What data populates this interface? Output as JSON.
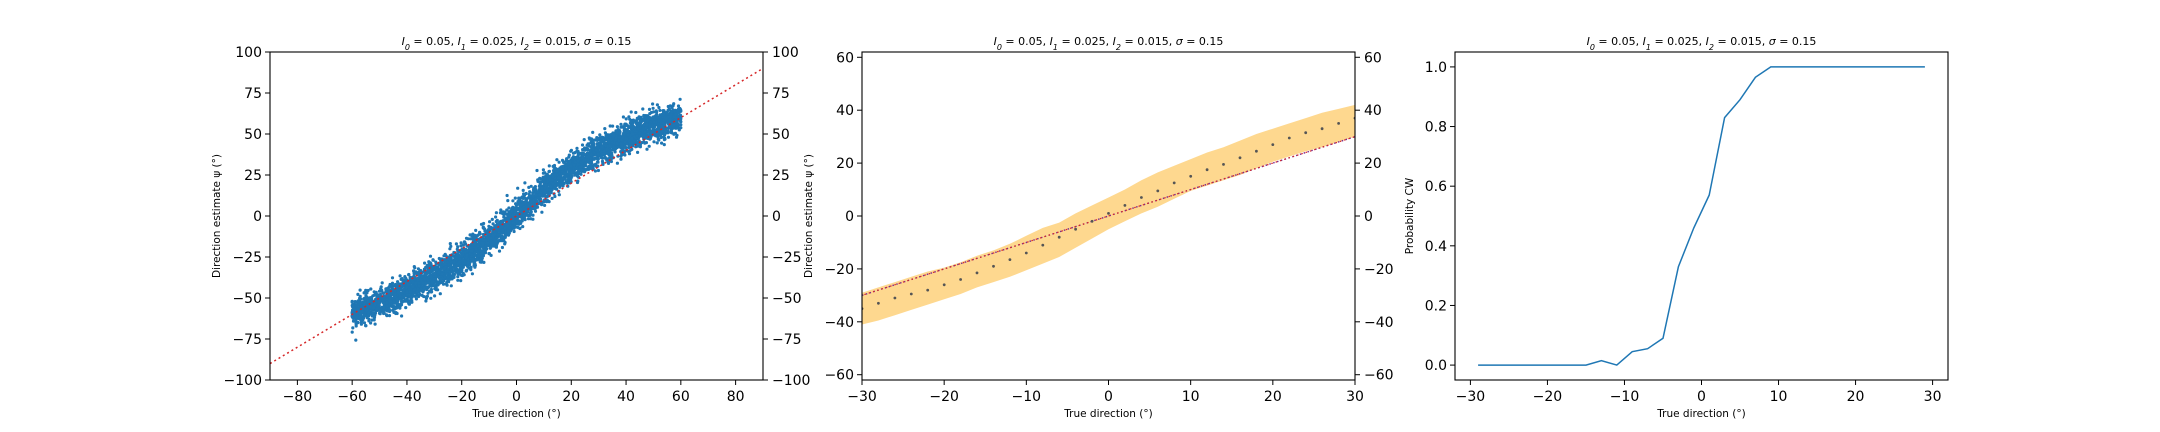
{
  "colors": {
    "scatter": "#1f77b4",
    "reference_line": "#d62728",
    "band": "#fdb833",
    "band_mean": "#555555",
    "line": "#1f77b4"
  },
  "chart_data": [
    {
      "type": "scatter",
      "title_parts": [
        {
          "t": "I",
          "italic": true
        },
        {
          "t": "0",
          "italic": true,
          "sub": true
        },
        {
          "t": " = 0.05, "
        },
        {
          "t": "I",
          "italic": true
        },
        {
          "t": "1",
          "italic": true,
          "sub": true
        },
        {
          "t": " = 0.025, "
        },
        {
          "t": "I",
          "italic": true
        },
        {
          "t": "2",
          "italic": true,
          "sub": true
        },
        {
          "t": " = 0.015, "
        },
        {
          "t": "σ",
          "italic": true
        },
        {
          "t": " = 0.15"
        }
      ],
      "xlabel": "True direction (°)",
      "ylabel": "Direction estimate ψ (°)",
      "xlim": [
        -90,
        90
      ],
      "ylim": [
        -100,
        100
      ],
      "xticks": [
        -80,
        -60,
        -40,
        -20,
        0,
        20,
        40,
        60,
        80
      ],
      "yticks": [
        -100,
        -75,
        -50,
        -25,
        0,
        25,
        50,
        75,
        100
      ],
      "right_yticks": true,
      "reference_line": {
        "x": [
          -90,
          90
        ],
        "y": [
          -90,
          90
        ],
        "style": "dotted"
      },
      "cloud": {
        "x_range": [
          -60,
          60
        ],
        "center_curve": {
          "x": [
            -60,
            -50,
            -40,
            -30,
            -20,
            -10,
            0,
            10,
            20,
            30,
            40,
            50,
            60
          ],
          "y": [
            -60,
            -53,
            -45,
            -37,
            -27,
            -14,
            0,
            16,
            30,
            40,
            48,
            55,
            61
          ]
        },
        "spread": 4.5
      }
    },
    {
      "type": "band",
      "title_parts": [
        {
          "t": "I",
          "italic": true
        },
        {
          "t": "0",
          "italic": true,
          "sub": true
        },
        {
          "t": " = 0.05, "
        },
        {
          "t": "I",
          "italic": true
        },
        {
          "t": "1",
          "italic": true,
          "sub": true
        },
        {
          "t": " = 0.025, "
        },
        {
          "t": "I",
          "italic": true
        },
        {
          "t": "2",
          "italic": true,
          "sub": true
        },
        {
          "t": " = 0.015, "
        },
        {
          "t": "σ",
          "italic": true
        },
        {
          "t": " = 0.15"
        }
      ],
      "xlabel": "True direction (°)",
      "ylabel": "Direction estimate ψ (°)",
      "xlim": [
        -30,
        30
      ],
      "ylim": [
        -62,
        62
      ],
      "xticks": [
        -30,
        -20,
        -10,
        0,
        10,
        20,
        30
      ],
      "yticks": [
        -60,
        -40,
        -20,
        0,
        20,
        40,
        60
      ],
      "right_yticks": true,
      "reference_line": {
        "x": [
          -30,
          30
        ],
        "y": [
          -30,
          30
        ],
        "style": "dotted"
      },
      "x": [
        -30,
        -28,
        -26,
        -24,
        -22,
        -20,
        -18,
        -16,
        -14,
        -12,
        -10,
        -8,
        -6,
        -4,
        -2,
        0,
        2,
        4,
        6,
        8,
        10,
        12,
        14,
        16,
        18,
        20,
        22,
        24,
        26,
        28,
        30
      ],
      "mean": [
        -35,
        -33,
        -31,
        -29.5,
        -28,
        -26,
        -24,
        -21.5,
        -19,
        -16.5,
        -14,
        -11,
        -8,
        -5,
        -2,
        1,
        4,
        7,
        9.5,
        12.5,
        15,
        17.5,
        19.5,
        22,
        24.5,
        27,
        29.5,
        31.5,
        33,
        35,
        37
      ],
      "lower": [
        -41,
        -39.5,
        -37.5,
        -35.5,
        -33.5,
        -31.5,
        -29.5,
        -27,
        -25,
        -23,
        -20.5,
        -18,
        -15.5,
        -12,
        -8.5,
        -5,
        -2,
        1,
        3.5,
        6.5,
        9.5,
        11.5,
        13.5,
        15.5,
        18,
        20.5,
        22.5,
        24.5,
        26,
        28,
        30
      ],
      "upper": [
        -29,
        -27,
        -25,
        -23,
        -21,
        -19.5,
        -17.5,
        -15,
        -13,
        -10.5,
        -7.5,
        -4.5,
        -2.5,
        1,
        4,
        7,
        10,
        13.5,
        16.5,
        19,
        21.5,
        24,
        26,
        28.5,
        31,
        33,
        35,
        37,
        39,
        40.5,
        42
      ]
    },
    {
      "type": "line",
      "title_parts": [
        {
          "t": "I",
          "italic": true
        },
        {
          "t": "0",
          "italic": true,
          "sub": true
        },
        {
          "t": " = 0.05, "
        },
        {
          "t": "I",
          "italic": true
        },
        {
          "t": "1",
          "italic": true,
          "sub": true
        },
        {
          "t": " = 0.025, "
        },
        {
          "t": "I",
          "italic": true
        },
        {
          "t": "2",
          "italic": true,
          "sub": true
        },
        {
          "t": " = 0.015, "
        },
        {
          "t": "σ",
          "italic": true
        },
        {
          "t": " = 0.15"
        }
      ],
      "xlabel": "True direction (°)",
      "ylabel": "Probability CW",
      "xlim": [
        -32,
        32
      ],
      "ylim": [
        -0.05,
        1.05
      ],
      "xticks": [
        -30,
        -20,
        -10,
        0,
        10,
        20,
        30
      ],
      "yticks": [
        0.0,
        0.2,
        0.4,
        0.6,
        0.8,
        1.0
      ],
      "ytick_labels": [
        "0.0",
        "0.2",
        "0.4",
        "0.6",
        "0.8",
        "1.0"
      ],
      "right_yticks": false,
      "x": [
        -29,
        -27,
        -25,
        -23,
        -21,
        -19,
        -17,
        -15,
        -13,
        -11,
        -9,
        -7,
        -5,
        -3,
        -1,
        1,
        3,
        5,
        7,
        9,
        11,
        13,
        15,
        17,
        19,
        21,
        23,
        25,
        27,
        29
      ],
      "y": [
        0.0,
        0.0,
        0.0,
        0.0,
        0.0,
        0.0,
        0.0,
        0.0,
        0.015,
        0.0,
        0.045,
        0.055,
        0.09,
        0.33,
        0.46,
        0.57,
        0.83,
        0.89,
        0.965,
        1.0,
        1.0,
        1.0,
        1.0,
        1.0,
        1.0,
        1.0,
        1.0,
        1.0,
        1.0,
        1.0
      ]
    }
  ]
}
